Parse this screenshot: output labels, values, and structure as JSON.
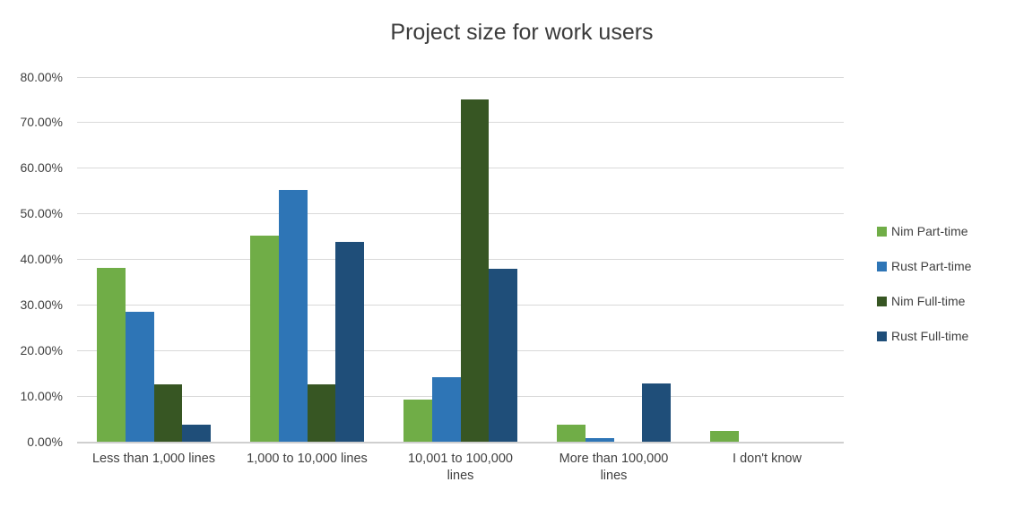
{
  "title": "Project size for work users",
  "colors": {
    "background": "#ffffff",
    "gridline": "#d9d9d9",
    "axis_line": "#cfcfcf",
    "text": "#404040",
    "title_text": "#3b3b3b",
    "nim_part_time": "#70AD47",
    "rust_part_time": "#2E75B6",
    "nim_full_time": "#375623",
    "rust_full_time": "#1F4E79"
  },
  "chart_data": {
    "type": "bar",
    "title": "Project size for work users",
    "categories": [
      "Less than 1,000 lines",
      "1,000 to 10,000 lines",
      "10,001 to 100,000\nlines",
      "More than 100,000\nlines",
      "I don't know"
    ],
    "series": [
      {
        "name": "Nim Part-time",
        "color": "#70AD47",
        "values": [
          38.1,
          45.2,
          9.3,
          3.7,
          2.4
        ]
      },
      {
        "name": "Rust Part-time",
        "color": "#2E75B6",
        "values": [
          28.6,
          55.2,
          14.2,
          0.8,
          0
        ]
      },
      {
        "name": "Nim Full-time",
        "color": "#375623",
        "values": [
          12.5,
          12.5,
          75.0,
          0,
          0
        ]
      },
      {
        "name": "Rust Full-time",
        "color": "#1F4E79",
        "values": [
          3.8,
          43.8,
          37.9,
          12.8,
          0
        ]
      }
    ],
    "xlabel": "",
    "ylabel": "",
    "ylim": [
      0,
      80
    ],
    "ytick_step": 10,
    "yticks": [
      "0.00%",
      "10.00%",
      "20.00%",
      "30.00%",
      "40.00%",
      "50.00%",
      "60.00%",
      "70.00%",
      "80.00%"
    ],
    "grid": true,
    "legend_position": "right"
  }
}
